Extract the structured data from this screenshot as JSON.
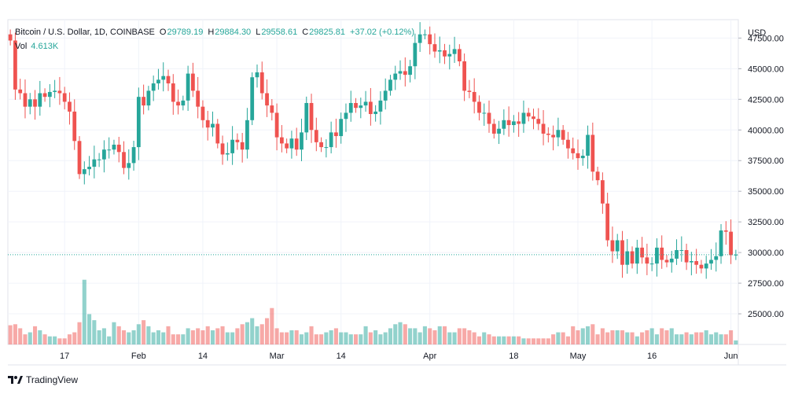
{
  "header": {
    "symbol": "Bitcoin / U.S. Dollar, 1D, COINBASE",
    "open_label": "O",
    "open": "29789.19",
    "high_label": "H",
    "high": "29884.30",
    "low_label": "L",
    "low": "29558.61",
    "close_label": "C",
    "close": "29825.81",
    "change": "+37.02 (+0.12%)"
  },
  "volume": {
    "label": "Vol",
    "value": "4.613K"
  },
  "branding": {
    "name": "TradingView"
  },
  "colors": {
    "up": "#26a69a",
    "down": "#ef5350",
    "grid": "#f0f3fa",
    "price_line": "#26a69a"
  },
  "chart_data": {
    "type": "candlestick",
    "title": "Bitcoin / U.S. Dollar, 1D, COINBASE",
    "currency_label": "USD",
    "ylim": [
      22500,
      49000
    ],
    "yticks": [
      "25000.00",
      "27500.00",
      "30000.00",
      "32500.00",
      "35000.00",
      "37500.00",
      "40000.00",
      "42500.00",
      "45000.00",
      "47500.00"
    ],
    "ytick_values": [
      25000,
      27500,
      30000,
      32500,
      35000,
      37500,
      40000,
      42500,
      45000,
      47500
    ],
    "current_price": 29825.81,
    "xticks": [
      {
        "label": "17",
        "index": 11
      },
      {
        "label": "Feb",
        "index": 26
      },
      {
        "label": "14",
        "index": 39
      },
      {
        "label": "Mar",
        "index": 54
      },
      {
        "label": "14",
        "index": 67
      },
      {
        "label": "Apr",
        "index": 85
      },
      {
        "label": "18",
        "index": 102
      },
      {
        "label": "May",
        "index": 115
      },
      {
        "label": "16",
        "index": 130
      },
      {
        "label": "Jun",
        "index": 146
      }
    ],
    "close": [
      47300,
      43300,
      43000,
      41900,
      42500,
      41900,
      43000,
      42700,
      43100,
      43200,
      43000,
      42300,
      41500,
      39100,
      36400,
      36800,
      37000,
      37600,
      37600,
      38400,
      38400,
      38800,
      38200,
      36900,
      37300,
      38600,
      42700,
      42000,
      43200,
      43800,
      44100,
      44400,
      43800,
      42300,
      42000,
      42400,
      44600,
      43200,
      41900,
      40800,
      40200,
      40500,
      38900,
      38000,
      38100,
      39200,
      39000,
      38400,
      40800,
      44300,
      44700,
      43000,
      42000,
      41400,
      39400,
      38900,
      38500,
      39300,
      38400,
      39800,
      42200,
      40000,
      39000,
      38600,
      38600,
      39800,
      39500,
      40900,
      41400,
      42200,
      41800,
      42000,
      42300,
      41300,
      41500,
      42400,
      43200,
      44100,
      44600,
      44800,
      44500,
      45200,
      47100,
      47800,
      47800,
      47000,
      46400,
      46500,
      46000,
      46200,
      46600,
      45600,
      43200,
      43100,
      42300,
      41400,
      41400,
      40500,
      39700,
      40100,
      40800,
      40400,
      40700,
      40500,
      41400,
      41100,
      40900,
      40500,
      39700,
      39600,
      39400,
      40000,
      39200,
      38500,
      38100,
      37700,
      37900,
      39600,
      36600,
      35900,
      34000,
      31000,
      30100,
      31000,
      29000,
      30100,
      29100,
      30400,
      29600,
      29100,
      29100,
      30400,
      29400,
      29200,
      29500,
      30200,
      30200,
      29200,
      29300,
      29000,
      28700,
      29100,
      29400,
      29700,
      31800,
      31700,
      29790,
      29826
    ],
    "open": [
      47800,
      47300,
      43300,
      43000,
      41900,
      42500,
      41900,
      43000,
      42700,
      43100,
      43200,
      43000,
      42300,
      41500,
      39100,
      36400,
      36800,
      37000,
      37600,
      37600,
      38400,
      38400,
      38800,
      38200,
      36900,
      37300,
      38600,
      42700,
      42000,
      43200,
      43800,
      44100,
      44400,
      43800,
      42300,
      42000,
      42400,
      44600,
      43200,
      41900,
      40800,
      40200,
      40500,
      38900,
      38000,
      38100,
      39200,
      39000,
      38400,
      40800,
      44300,
      44700,
      43000,
      42000,
      41400,
      39400,
      38900,
      38500,
      39300,
      38400,
      39800,
      42200,
      40000,
      39000,
      38600,
      38600,
      39800,
      39500,
      40900,
      41400,
      42200,
      41800,
      42000,
      42300,
      41300,
      41500,
      42400,
      43200,
      44100,
      44600,
      44800,
      44500,
      45200,
      47100,
      47800,
      47800,
      47000,
      46400,
      46500,
      46000,
      46200,
      46600,
      45600,
      43200,
      43100,
      42300,
      41400,
      41400,
      40500,
      39700,
      40100,
      40800,
      40400,
      40700,
      40500,
      41400,
      41100,
      40900,
      40500,
      39700,
      39600,
      39400,
      40000,
      39200,
      38500,
      38100,
      37700,
      37900,
      39600,
      36600,
      35900,
      34000,
      31000,
      30100,
      31000,
      29000,
      30100,
      29100,
      30400,
      29600,
      29100,
      29100,
      30400,
      29400,
      29200,
      29500,
      30200,
      30200,
      29200,
      29300,
      29000,
      28700,
      29100,
      29400,
      29700,
      31800,
      31700,
      29790
    ],
    "volume": [
      9.5,
      10,
      8,
      5,
      6,
      9,
      7,
      5,
      4,
      4,
      3,
      3,
      5,
      6,
      11,
      32,
      15,
      12,
      7,
      8,
      4,
      11,
      9,
      7,
      6,
      7,
      10,
      12,
      9,
      6,
      7,
      6,
      9,
      5,
      5,
      5,
      8,
      7,
      8,
      7,
      9,
      7,
      8,
      9,
      6,
      6,
      8,
      10,
      11,
      13,
      9,
      10,
      13,
      18,
      8,
      6,
      6,
      7,
      7,
      5,
      6,
      9,
      5,
      5,
      6,
      7,
      8,
      6,
      6,
      5,
      5,
      5,
      9,
      6,
      7,
      5,
      6,
      8,
      10,
      11,
      10,
      8,
      8,
      6,
      9,
      8,
      7,
      9,
      9,
      6,
      6,
      8,
      8,
      7,
      6,
      4,
      6,
      5,
      4,
      4,
      4,
      4,
      4,
      4,
      3,
      3,
      3,
      3,
      3,
      3,
      5,
      6,
      6,
      4,
      9,
      7,
      8,
      9,
      10,
      5,
      8,
      6,
      7,
      7,
      7,
      6,
      6,
      4,
      6,
      7,
      8,
      5,
      8,
      7,
      8,
      5,
      5,
      6,
      5,
      6,
      6,
      7,
      5,
      6,
      5,
      5,
      7,
      2
    ],
    "volume_scale_max": 35
  }
}
